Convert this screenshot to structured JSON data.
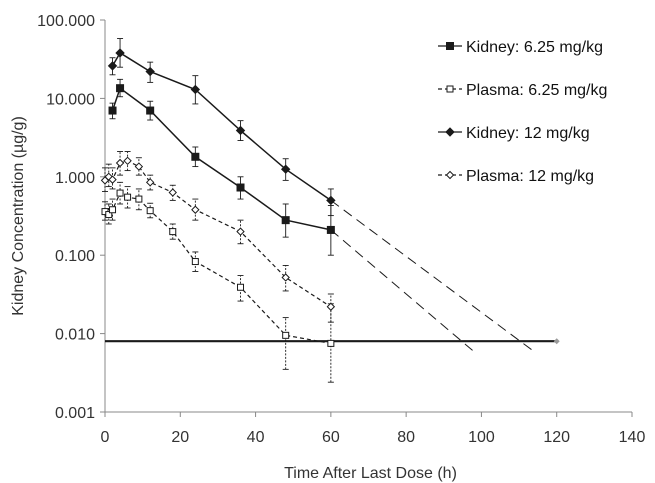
{
  "chart_data": {
    "type": "line",
    "xlabel": "Time After Last Dose (h)",
    "ylabel": "Kidney Concentration (µg/g)",
    "xlim": [
      0,
      140
    ],
    "ylim": [
      0.001,
      100
    ],
    "y_scale": "log",
    "x_ticks": [
      "0",
      "20",
      "40",
      "60",
      "80",
      "100",
      "120",
      "140"
    ],
    "y_ticks": [
      "0.001",
      "0.010",
      "0.100",
      "1.000",
      "10.000",
      "100.000"
    ],
    "grid": false,
    "legend_position": "top-right",
    "series": [
      {
        "name": "Kidney: 6.25 mg/kg",
        "line": "solid",
        "marker": "filled-square",
        "x": [
          2,
          4,
          12,
          24,
          36,
          48,
          60
        ],
        "y": [
          7.0,
          13.5,
          7.0,
          1.8,
          0.73,
          0.28,
          0.21
        ],
        "err": [
          [
            5.5,
            8.7
          ],
          [
            10.5,
            17.5
          ],
          [
            5.3,
            9.2
          ],
          [
            1.35,
            2.4
          ],
          [
            0.52,
            1.0
          ],
          [
            0.17,
            0.45
          ],
          [
            0.1,
            0.43
          ]
        ]
      },
      {
        "name": "Plasma: 6.25 mg/kg",
        "line": "dashed",
        "marker": "open-square",
        "x": [
          0,
          1,
          2,
          4,
          6,
          9,
          12,
          18,
          24,
          36,
          48,
          60
        ],
        "y": [
          0.36,
          0.33,
          0.38,
          0.62,
          0.55,
          0.52,
          0.37,
          0.2,
          0.083,
          0.039,
          0.0095,
          0.0075
        ],
        "err": [
          [
            0.28,
            0.48
          ],
          [
            0.25,
            0.45
          ],
          [
            0.28,
            0.52
          ],
          [
            0.45,
            0.85
          ],
          [
            0.4,
            0.75
          ],
          [
            0.38,
            0.7
          ],
          [
            0.3,
            0.46
          ],
          [
            0.16,
            0.25
          ],
          [
            0.062,
            0.11
          ],
          [
            0.026,
            0.055
          ],
          [
            0.0035,
            0.016
          ],
          [
            0.0024,
            0.024
          ]
        ]
      },
      {
        "name": "Kidney: 12 mg/kg",
        "line": "solid",
        "marker": "filled-diamond",
        "x": [
          2,
          4,
          12,
          24,
          36,
          48,
          60
        ],
        "y": [
          26,
          38,
          22,
          13,
          3.9,
          1.25,
          0.5
        ],
        "err": [
          [
            20,
            33
          ],
          [
            25,
            58
          ],
          [
            16,
            29
          ],
          [
            8.5,
            19.5
          ],
          [
            2.9,
            5.2
          ],
          [
            0.9,
            1.7
          ],
          [
            0.32,
            0.7
          ]
        ]
      },
      {
        "name": "Plasma: 12 mg/kg",
        "line": "dashed",
        "marker": "open-diamond",
        "x": [
          0,
          1,
          2,
          4,
          6,
          9,
          12,
          18,
          24,
          36,
          48,
          60
        ],
        "y": [
          0.9,
          1.0,
          0.92,
          1.5,
          1.6,
          1.35,
          0.85,
          0.63,
          0.38,
          0.2,
          0.052,
          0.022
        ],
        "err": [
          [
            0.65,
            1.3
          ],
          [
            0.75,
            1.45
          ],
          [
            0.7,
            1.3
          ],
          [
            1.05,
            2.1
          ],
          [
            1.2,
            2.1
          ],
          [
            1.05,
            1.75
          ],
          [
            0.68,
            1.05
          ],
          [
            0.5,
            0.78
          ],
          [
            0.28,
            0.52
          ],
          [
            0.14,
            0.28
          ],
          [
            0.035,
            0.074
          ],
          [
            0.014,
            0.032
          ]
        ]
      }
    ],
    "extrapolations": [
      {
        "line": "long-dash",
        "x": [
          60,
          98
        ],
        "y": [
          0.21,
          0.0059
        ]
      },
      {
        "line": "long-dash",
        "x": [
          60,
          114
        ],
        "y": [
          0.5,
          0.0059
        ]
      }
    ],
    "reference_line": {
      "line": "solid-bold",
      "x": [
        0,
        120
      ],
      "y": 0.008
    }
  },
  "legend": [
    {
      "label": "Kidney: 6.25 mg/kg",
      "marker": "filled-square",
      "dash": "solid"
    },
    {
      "label": "Plasma: 6.25 mg/kg",
      "marker": "open-square",
      "dash": "dashed"
    },
    {
      "label": "Kidney: 12 mg/kg",
      "marker": "filled-diamond",
      "dash": "solid"
    },
    {
      "label": "Plasma: 12 mg/kg",
      "marker": "open-diamond",
      "dash": "dashed"
    }
  ],
  "colors": {
    "ink": "#1a1a1a",
    "axis": "#888888",
    "text": "#333333"
  }
}
